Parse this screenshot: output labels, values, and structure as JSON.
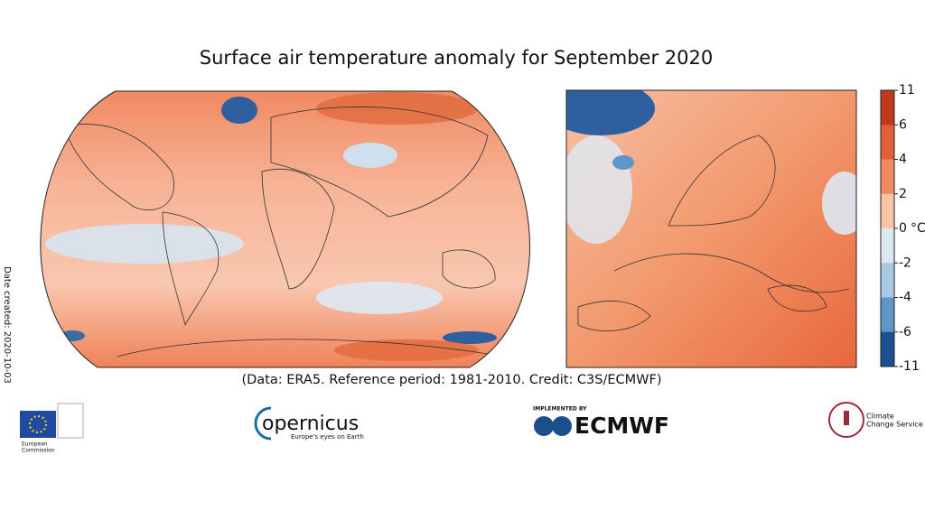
{
  "title": "Surface air temperature anomaly for September 2020",
  "caption": "(Data: ERA5.  Reference period: 1981-2010.  Credit: C3S/ECMWF)",
  "date_created": "Date created: 2020-10-03",
  "colorbar": {
    "unit": "°C",
    "ticks": [
      11,
      6,
      4,
      2,
      0,
      -2,
      -4,
      -6,
      -11
    ],
    "colors": [
      "#c0391b",
      "#e0603a",
      "#f08a60",
      "#f9c3a6",
      "#dde8f3",
      "#a9c9e3",
      "#5f95c7",
      "#1d4f92"
    ]
  },
  "logos": {
    "eu": {
      "line1": "European",
      "line2": "Commission"
    },
    "copernicus": {
      "name": "opernicus",
      "tagline": "Europe's eyes on Earth"
    },
    "ecmwf": {
      "prefix": "IMPLEMENTED BY",
      "name": "ECMWF"
    },
    "c3s": {
      "line1": "Climate",
      "line2": "Change Service"
    }
  }
}
